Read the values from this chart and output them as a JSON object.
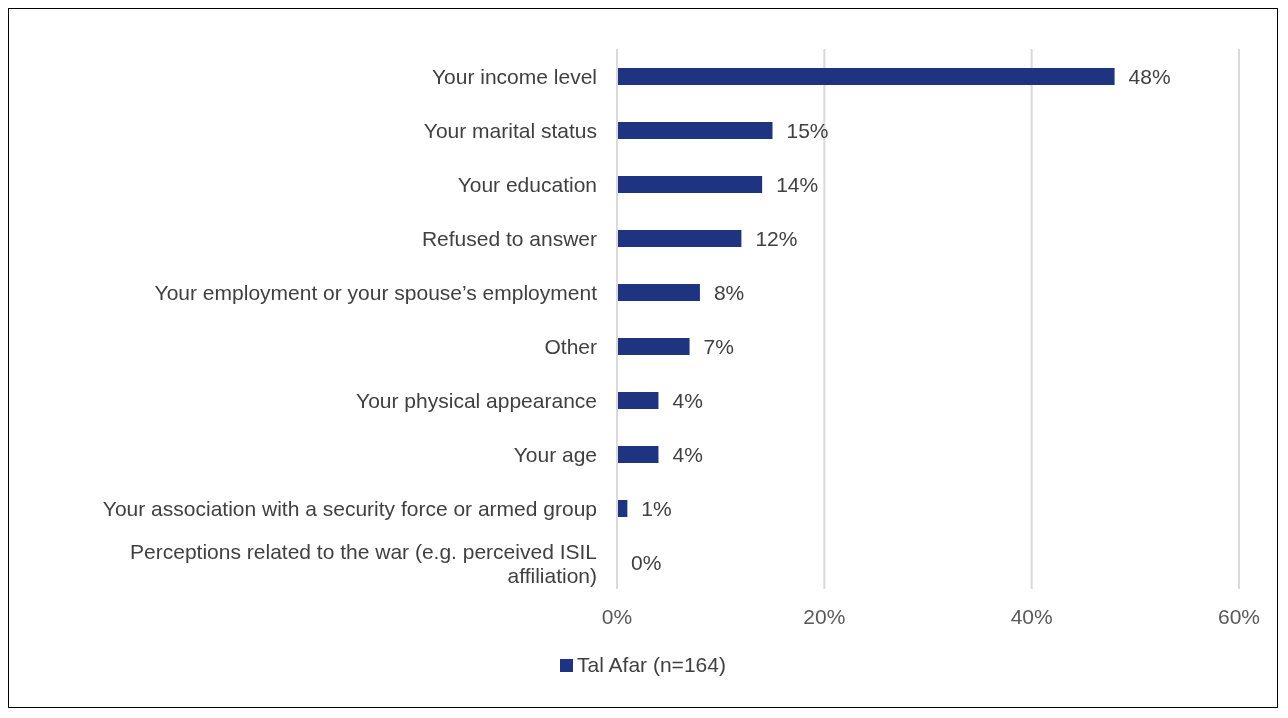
{
  "chart_data": {
    "type": "bar",
    "orientation": "horizontal",
    "categories": [
      "Your income level",
      "Your marital status",
      "Your education",
      "Refused to answer",
      "Your employment or your spouse’s employment",
      "Other",
      "Your physical appearance",
      "Your age",
      "Your association with a security force or armed group",
      "Perceptions related to the war (e.g. perceived ISIL affiliation)"
    ],
    "series": [
      {
        "name": "Tal Afar (n=164)",
        "color": "#1f3480",
        "values": [
          48,
          15,
          14,
          12,
          8,
          7,
          4,
          4,
          1,
          0
        ],
        "value_labels": [
          "48%",
          "15%",
          "14%",
          "12%",
          "8%",
          "7%",
          "4%",
          "4%",
          "1%",
          "0%"
        ]
      }
    ],
    "xlim": [
      0,
      60
    ],
    "xticks": [
      {
        "value": 0,
        "label": "0%"
      },
      {
        "value": 20,
        "label": "20%"
      },
      {
        "value": 40,
        "label": "40%"
      },
      {
        "value": 60,
        "label": "60%"
      }
    ],
    "grid": "x",
    "legend": "bottom"
  }
}
